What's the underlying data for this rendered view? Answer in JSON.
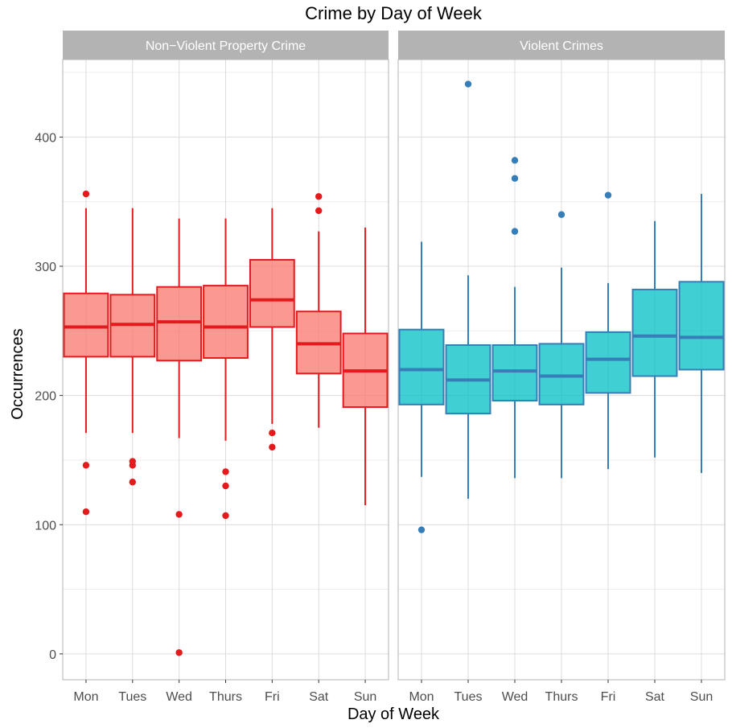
{
  "chart_data": {
    "type": "box",
    "title": "Crime by Day of Week",
    "xlabel": "Day of Week",
    "ylabel": "Occurrences",
    "ylim": [
      -20,
      460
    ],
    "y_ticks": [
      0,
      100,
      200,
      300,
      400
    ],
    "categories": [
      "Mon",
      "Tues",
      "Wed",
      "Thurs",
      "Fri",
      "Sat",
      "Sun"
    ],
    "grid": true,
    "panels": [
      {
        "name": "Non−Violent Property Crime",
        "fill": "#F8766D",
        "stroke": "#E41A1C",
        "boxes": [
          {
            "min": 171,
            "q1": 230,
            "median": 253,
            "q3": 279,
            "max": 345,
            "outliers": [
              356,
              146,
              110
            ]
          },
          {
            "min": 171,
            "q1": 230,
            "median": 255,
            "q3": 278,
            "max": 345,
            "outliers": [
              149,
              146,
              133
            ]
          },
          {
            "min": 167,
            "q1": 227,
            "median": 257,
            "q3": 284,
            "max": 337,
            "outliers": [
              108,
              1
            ]
          },
          {
            "min": 165,
            "q1": 229,
            "median": 253,
            "q3": 285,
            "max": 337,
            "outliers": [
              141,
              130,
              107
            ]
          },
          {
            "min": 178,
            "q1": 253,
            "median": 274,
            "q3": 305,
            "max": 345,
            "outliers": [
              171,
              160
            ]
          },
          {
            "min": 175,
            "q1": 217,
            "median": 240,
            "q3": 265,
            "max": 327,
            "outliers": [
              354,
              343
            ]
          },
          {
            "min": 115,
            "q1": 191,
            "median": 219,
            "q3": 248,
            "max": 330,
            "outliers": []
          }
        ]
      },
      {
        "name": "Violent Crimes",
        "fill": "#00BFC4",
        "stroke": "#377EB8",
        "boxes": [
          {
            "min": 137,
            "q1": 193,
            "median": 220,
            "q3": 251,
            "max": 319,
            "outliers": [
              96
            ]
          },
          {
            "min": 120,
            "q1": 186,
            "median": 212,
            "q3": 239,
            "max": 293,
            "outliers": [
              441
            ]
          },
          {
            "min": 136,
            "q1": 196,
            "median": 219,
            "q3": 239,
            "max": 284,
            "outliers": [
              382,
              368,
              327
            ]
          },
          {
            "min": 136,
            "q1": 193,
            "median": 215,
            "q3": 240,
            "max": 299,
            "outliers": [
              340
            ]
          },
          {
            "min": 143,
            "q1": 202,
            "median": 228,
            "q3": 249,
            "max": 287,
            "outliers": [
              355
            ]
          },
          {
            "min": 152,
            "q1": 215,
            "median": 246,
            "q3": 282,
            "max": 335,
            "outliers": []
          },
          {
            "min": 140,
            "q1": 220,
            "median": 245,
            "q3": 288,
            "max": 356,
            "outliers": []
          }
        ]
      }
    ]
  }
}
